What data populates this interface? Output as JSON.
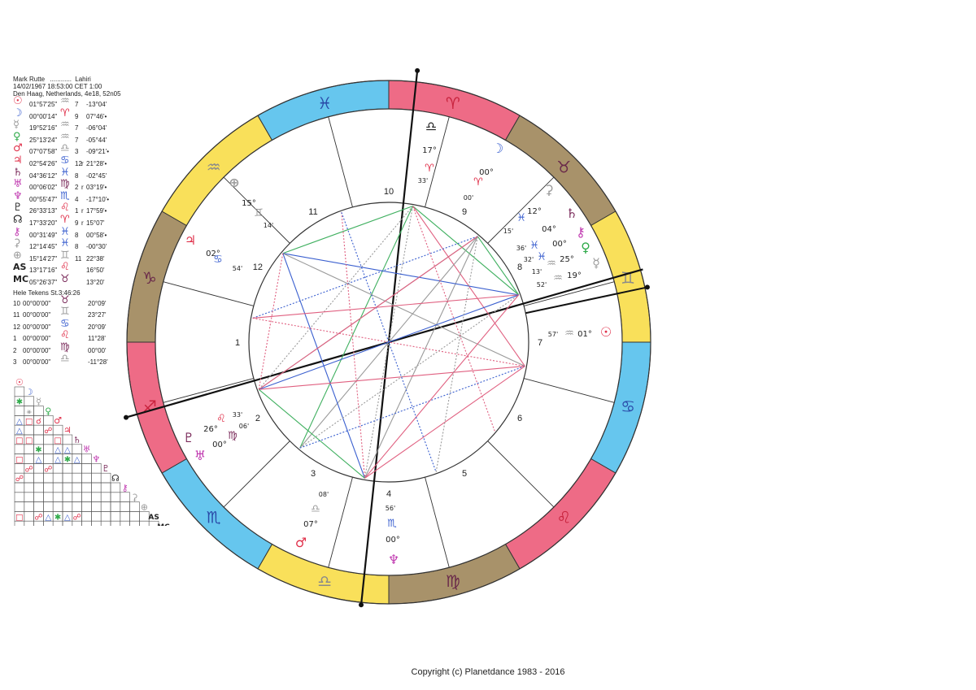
{
  "header": {
    "name": "Mark Rutte",
    "dots": "............",
    "ayanamsa": "Lahiri",
    "datetime": "14/02/1967 18:53:00 CET 1:00",
    "location": "Den Haag, Netherlands, 4e18, 52n05"
  },
  "planets": [
    {
      "glyph": "☉",
      "name": "sun",
      "deg": "01°57'25\"",
      "sign": "♒",
      "house": "7",
      "retro": "",
      "decl": "-13°04'",
      "color": "#e0304a",
      "sign_color": "#9a9a9a"
    },
    {
      "glyph": "☽",
      "name": "moon",
      "deg": "00°00'14\"",
      "sign": "♈",
      "house": "9",
      "retro": "",
      "decl": "07°46'•",
      "color": "#3a5fcf",
      "sign_color": "#e0304a"
    },
    {
      "glyph": "☿",
      "name": "mercury",
      "deg": "19°52'16\"",
      "sign": "♒",
      "house": "7",
      "retro": "",
      "decl": "-06°04'",
      "color": "#9a9a9a",
      "sign_color": "#9a9a9a"
    },
    {
      "glyph": "♀",
      "name": "venus",
      "deg": "25°13'24\"",
      "sign": "♒",
      "house": "7",
      "retro": "",
      "decl": "-05°44'",
      "color": "#2faa4a",
      "sign_color": "#9a9a9a"
    },
    {
      "glyph": "♂",
      "name": "mars",
      "deg": "07°07'58\"",
      "sign": "♎",
      "house": "3",
      "retro": "",
      "decl": "-09°21'•",
      "color": "#e0304a",
      "sign_color": "#9a9a9a"
    },
    {
      "glyph": "♃",
      "name": "jupiter",
      "deg": "02°54'26\"",
      "sign": "♋",
      "house": "12",
      "retro": "r",
      "decl": "21°28'•",
      "color": "#e0304a",
      "sign_color": "#3a5fcf"
    },
    {
      "glyph": "♄",
      "name": "saturn",
      "deg": "04°36'12\"",
      "sign": "♓",
      "house": "8",
      "retro": "",
      "decl": "-02°45'",
      "color": "#7a2a5a",
      "sign_color": "#3a5fcf"
    },
    {
      "glyph": "♅",
      "name": "uranus",
      "deg": "00°06'02\"",
      "sign": "♍",
      "house": "2",
      "retro": "r",
      "decl": "03°19'•",
      "color": "#c03ab0",
      "sign_color": "#7a2a5a"
    },
    {
      "glyph": "♆",
      "name": "neptune",
      "deg": "00°55'47\"",
      "sign": "♏",
      "house": "4",
      "retro": "",
      "decl": "-17°10'•",
      "color": "#c03ab0",
      "sign_color": "#3a5fcf"
    },
    {
      "glyph": "♇",
      "name": "pluto",
      "deg": "26°33'13\"",
      "sign": "♌",
      "house": "1",
      "retro": "r",
      "decl": "17°59'•",
      "color": "#222222",
      "sign_color": "#e0304a"
    },
    {
      "glyph": "☊",
      "name": "node",
      "deg": "17°33'20\"",
      "sign": "♈",
      "house": "9",
      "retro": "r",
      "decl": "15°07'",
      "color": "#222222",
      "sign_color": "#e0304a"
    },
    {
      "glyph": "⚷",
      "name": "chiron",
      "deg": "00°31'49\"",
      "sign": "♓",
      "house": "8",
      "retro": "",
      "decl": "00°58'•",
      "color": "#c03ab0",
      "sign_color": "#3a5fcf"
    },
    {
      "glyph": "⚳",
      "name": "ceres",
      "deg": "12°14'45\"",
      "sign": "♓",
      "house": "8",
      "retro": "",
      "decl": "-00°30'",
      "color": "#9a9a9a",
      "sign_color": "#3a5fcf"
    },
    {
      "glyph": "⊕",
      "name": "fortune",
      "deg": "15°14'27\"",
      "sign": "♊",
      "house": "11",
      "retro": "",
      "decl": "22°38'",
      "color": "#9a9a9a",
      "sign_color": "#9a9a9a"
    },
    {
      "glyph": "AS",
      "name": "ascendant",
      "deg": "13°17'16\"",
      "sign": "♌",
      "house": "",
      "retro": "",
      "decl": "16°50'",
      "color": "#222222",
      "sign_color": "#e0304a"
    },
    {
      "glyph": "MC",
      "name": "midheaven",
      "deg": "05°26'37\"",
      "sign": "♉",
      "house": "",
      "retro": "",
      "decl": "13°20'",
      "color": "#222222",
      "sign_color": "#7a2a5a"
    }
  ],
  "houses_title": "Hele Tekens St.3:46:26",
  "houses": [
    {
      "num": "10",
      "deg": "00°00'00\"",
      "sign": "♉",
      "sign_color": "#7a2a5a",
      "decl": "20°09'"
    },
    {
      "num": "11",
      "deg": "00°00'00\"",
      "sign": "♊",
      "sign_color": "#9a9a9a",
      "decl": "23°27'"
    },
    {
      "num": "12",
      "deg": "00°00'00\"",
      "sign": "♋",
      "sign_color": "#3a5fcf",
      "decl": "20°09'"
    },
    {
      "num": "1",
      "deg": "00°00'00\"",
      "sign": "♌",
      "sign_color": "#e0304a",
      "decl": "11°28'"
    },
    {
      "num": "2",
      "deg": "00°00'00\"",
      "sign": "♍",
      "sign_color": "#7a2a5a",
      "decl": "00°00'"
    },
    {
      "num": "3",
      "deg": "00°00'00\"",
      "sign": "♎",
      "sign_color": "#9a9a9a",
      "decl": "-11°28'"
    }
  ],
  "zodiac": [
    {
      "glyph": "♈",
      "color": "#ee6b86",
      "glyph_color": "#c8243e"
    },
    {
      "glyph": "♉",
      "color": "#a8926a",
      "glyph_color": "#6a2a4a"
    },
    {
      "glyph": "♊",
      "color": "#f9e05a",
      "glyph_color": "#8a8a8a"
    },
    {
      "glyph": "♋",
      "color": "#66c6ee",
      "glyph_color": "#2a4aa8"
    },
    {
      "glyph": "♌",
      "color": "#ee6b86",
      "glyph_color": "#c8243e"
    },
    {
      "glyph": "♍",
      "color": "#a8926a",
      "glyph_color": "#6a2a4a"
    },
    {
      "glyph": "♎",
      "color": "#f9e05a",
      "glyph_color": "#8a8a8a"
    },
    {
      "glyph": "♏",
      "color": "#66c6ee",
      "glyph_color": "#2a4aa8"
    },
    {
      "glyph": "♐",
      "color": "#ee6b86",
      "glyph_color": "#c8243e"
    },
    {
      "glyph": "♑",
      "color": "#a8926a",
      "glyph_color": "#6a2a4a"
    },
    {
      "glyph": "♒",
      "color": "#f9e05a",
      "glyph_color": "#8a8a8a"
    },
    {
      "glyph": "♓",
      "color": "#66c6ee",
      "glyph_color": "#2a4aa8"
    }
  ],
  "house_numbers": [
    "1",
    "2",
    "3",
    "4",
    "5",
    "6",
    "7",
    "8",
    "9",
    "10",
    "11",
    "12"
  ],
  "wheel_labels": [
    {
      "t": "♎",
      "c": "#222222"
    },
    {
      "t": "17°",
      "c": "#222222"
    },
    {
      "t": "♈",
      "c": "#e0304a"
    },
    {
      "t": "33'",
      "c": "#222222"
    },
    {
      "t": "☽",
      "c": "#3a5fcf"
    },
    {
      "t": "00°",
      "c": "#222222"
    },
    {
      "t": "♈",
      "c": "#e0304a"
    },
    {
      "t": "00'",
      "c": "#222222"
    },
    {
      "t": "⚳",
      "c": "#9a9a9a"
    },
    {
      "t": "12°",
      "c": "#222222"
    },
    {
      "t": "♓",
      "c": "#3a5fcf"
    },
    {
      "t": "15'",
      "c": "#222222"
    },
    {
      "t": "♄",
      "c": "#7a2a5a"
    },
    {
      "t": "04°",
      "c": "#222222"
    },
    {
      "t": "♓",
      "c": "#3a5fcf"
    },
    {
      "t": "36'",
      "c": "#222222"
    },
    {
      "t": "⚷",
      "c": "#c03ab0"
    },
    {
      "t": "00°",
      "c": "#222222"
    },
    {
      "t": "♓",
      "c": "#3a5fcf"
    },
    {
      "t": "32'",
      "c": "#222222"
    },
    {
      "t": "♀",
      "c": "#2faa4a"
    },
    {
      "t": "25°",
      "c": "#222222"
    },
    {
      "t": "♒",
      "c": "#9a9a9a"
    },
    {
      "t": "13'",
      "c": "#222222"
    },
    {
      "t": "☿",
      "c": "#9a9a9a"
    },
    {
      "t": "19°",
      "c": "#222222"
    },
    {
      "t": "♒",
      "c": "#9a9a9a"
    },
    {
      "t": "52'",
      "c": "#222222"
    },
    {
      "t": "☉",
      "c": "#e0304a"
    },
    {
      "t": "01°",
      "c": "#222222"
    },
    {
      "t": "♒",
      "c": "#9a9a9a"
    },
    {
      "t": "57'",
      "c": "#222222"
    },
    {
      "t": "⊕",
      "c": "#9a9a9a"
    },
    {
      "t": "15°",
      "c": "#222222"
    },
    {
      "t": "♊",
      "c": "#9a9a9a"
    },
    {
      "t": "14'",
      "c": "#222222"
    },
    {
      "t": "♃",
      "c": "#e0304a"
    },
    {
      "t": "02°",
      "c": "#222222"
    },
    {
      "t": "♋",
      "c": "#3a5fcf"
    },
    {
      "t": "54'",
      "c": "#222222"
    },
    {
      "t": "♇",
      "c": "#7a2a5a"
    },
    {
      "t": "26°",
      "c": "#222222"
    },
    {
      "t": "♌",
      "c": "#e0304a"
    },
    {
      "t": "33'",
      "c": "#222222"
    },
    {
      "t": "♅",
      "c": "#c03ab0"
    },
    {
      "t": "00°",
      "c": "#222222"
    },
    {
      "t": "♍",
      "c": "#7a2a5a"
    },
    {
      "t": "06'",
      "c": "#222222"
    },
    {
      "t": "♂",
      "c": "#e0304a"
    },
    {
      "t": "07°",
      "c": "#222222"
    },
    {
      "t": "♎",
      "c": "#9a9a9a"
    },
    {
      "t": "08'",
      "c": "#222222"
    },
    {
      "t": "♆",
      "c": "#c03ab0"
    },
    {
      "t": "00°",
      "c": "#222222"
    },
    {
      "t": "♏",
      "c": "#3a5fcf"
    },
    {
      "t": "56'",
      "c": "#222222"
    }
  ],
  "aspect_lines": [
    {
      "a": 10,
      "b": 8,
      "c": "#40b060",
      "s": 0
    },
    {
      "a": 10,
      "b": 3,
      "c": "#40b060",
      "s": 0
    },
    {
      "a": 10,
      "b": 7,
      "c": "#e06080",
      "s": 0
    },
    {
      "a": 10,
      "b": 2,
      "c": "#9a9a9a",
      "s": 1
    },
    {
      "a": 10,
      "b": 4,
      "c": "#9a9a9a",
      "s": 1
    },
    {
      "a": 10,
      "b": 12,
      "c": "#40b060",
      "s": 0
    },
    {
      "a": 9,
      "b": 4,
      "c": "#9a9a9a",
      "s": 0
    },
    {
      "a": 9,
      "b": 3,
      "c": "#9a9a9a",
      "s": 0
    },
    {
      "a": 9,
      "b": 2,
      "c": "#9a9a9a",
      "s": 0
    },
    {
      "a": 9,
      "b": 8,
      "c": "#40b060",
      "s": 0
    },
    {
      "a": 9,
      "b": 1,
      "c": "#3a5fcf",
      "s": 1
    },
    {
      "a": 12,
      "b": 8,
      "c": "#3a5fcf",
      "s": 0
    },
    {
      "a": 12,
      "b": 7,
      "c": "#9a9a9a",
      "s": 0
    },
    {
      "a": 12,
      "b": 4,
      "c": "#3a5fcf",
      "s": 0
    },
    {
      "a": 12,
      "b": 2,
      "c": "#e06080",
      "s": 1
    },
    {
      "a": 1,
      "b": 8,
      "c": "#e06080",
      "s": 0
    },
    {
      "a": 1,
      "b": 7,
      "c": "#e06080",
      "s": 1
    },
    {
      "a": 2,
      "b": 7,
      "c": "#e06080",
      "s": 0
    },
    {
      "a": 2,
      "b": 8,
      "c": "#3a5fcf",
      "s": 0
    },
    {
      "a": 2,
      "b": 4,
      "c": "#40b060",
      "s": 0
    },
    {
      "a": 3,
      "b": 8,
      "c": "#9a9a9a",
      "s": 1
    },
    {
      "a": 3,
      "b": 7,
      "c": "#3a5fcf",
      "s": 1
    },
    {
      "a": 4,
      "b": 8,
      "c": "#e06080",
      "s": 0
    },
    {
      "a": 4,
      "b": 7,
      "c": "#e06080",
      "s": 0
    },
    {
      "a": 11,
      "b": 4,
      "c": "#e06080",
      "s": 1
    },
    {
      "a": 11,
      "b": 5,
      "c": "#3a5fcf",
      "s": 1
    },
    {
      "a": 5,
      "b": 9,
      "c": "#9a9a9a",
      "s": 1
    },
    {
      "a": 6,
      "b": 10,
      "c": "#e06080",
      "s": 1
    },
    {
      "a": 2,
      "b": 9,
      "c": "#e06080",
      "s": 0
    }
  ],
  "aspect_grid_labels": [
    {
      "t": "☉",
      "c": "#e0304a"
    },
    {
      "t": "☽",
      "c": "#3a5fcf"
    },
    {
      "t": "☿",
      "c": "#9a9a9a"
    },
    {
      "t": "♀",
      "c": "#2faa4a"
    },
    {
      "t": "♂",
      "c": "#e0304a"
    },
    {
      "t": "♃",
      "c": "#e0304a"
    },
    {
      "t": "♄",
      "c": "#7a2a5a"
    },
    {
      "t": "♅",
      "c": "#c03ab0"
    },
    {
      "t": "♆",
      "c": "#c03ab0"
    },
    {
      "t": "♇",
      "c": "#7a2a5a"
    },
    {
      "t": "☊",
      "c": "#222222"
    },
    {
      "t": "⚷",
      "c": "#c03ab0"
    },
    {
      "t": "⚳",
      "c": "#9a9a9a"
    },
    {
      "t": "⊕",
      "c": "#9a9a9a"
    },
    {
      "t": "AS",
      "c": "#222222"
    },
    {
      "t": "MC",
      "c": "#222222"
    }
  ],
  "aspect_cells": [
    {
      "r": 1,
      "c": 0,
      "s": "✱",
      "k": "#2faa4a"
    },
    {
      "r": 3,
      "c": 0,
      "s": "△",
      "k": "#3a5fcf"
    },
    {
      "r": 3,
      "c": 1,
      "s": "□",
      "k": "#e0304a"
    },
    {
      "r": 3,
      "c": 2,
      "s": "☌",
      "k": "#e0304a"
    },
    {
      "r": 4,
      "c": 0,
      "s": "△",
      "k": "#3a5fcf"
    },
    {
      "r": 4,
      "c": 3,
      "s": "☍",
      "k": "#e0304a"
    },
    {
      "r": 5,
      "c": 0,
      "s": "□",
      "k": "#e0304a"
    },
    {
      "r": 5,
      "c": 1,
      "s": "□",
      "k": "#e0304a"
    },
    {
      "r": 5,
      "c": 4,
      "s": "□",
      "k": "#e0304a"
    },
    {
      "r": 6,
      "c": 2,
      "s": "✱",
      "k": "#2faa4a"
    },
    {
      "r": 6,
      "c": 4,
      "s": "△",
      "k": "#3a5fcf"
    },
    {
      "r": 6,
      "c": 5,
      "s": "△",
      "k": "#3a5fcf"
    },
    {
      "r": 7,
      "c": 0,
      "s": "□",
      "k": "#e0304a"
    },
    {
      "r": 7,
      "c": 2,
      "s": "△",
      "k": "#3a5fcf"
    },
    {
      "r": 7,
      "c": 4,
      "s": "△",
      "k": "#3a5fcf"
    },
    {
      "r": 7,
      "c": 5,
      "s": "✱",
      "k": "#2faa4a"
    },
    {
      "r": 7,
      "c": 6,
      "s": "△",
      "k": "#3a5fcf"
    },
    {
      "r": 8,
      "c": 1,
      "s": "☍",
      "k": "#e0304a"
    },
    {
      "r": 8,
      "c": 3,
      "s": "☍",
      "k": "#e0304a"
    },
    {
      "r": 9,
      "c": 0,
      "s": "☍",
      "k": "#e0304a"
    },
    {
      "r": 13,
      "c": 0,
      "s": "□",
      "k": "#e0304a"
    },
    {
      "r": 13,
      "c": 2,
      "s": "☍",
      "k": "#e0304a"
    },
    {
      "r": 13,
      "c": 3,
      "s": "△",
      "k": "#3a5fcf"
    },
    {
      "r": 13,
      "c": 4,
      "s": "✱",
      "k": "#2faa4a"
    },
    {
      "r": 13,
      "c": 5,
      "s": "△",
      "k": "#3a5fcf"
    },
    {
      "r": 13,
      "c": 6,
      "s": "☍",
      "k": "#e0304a"
    },
    {
      "r": 2,
      "c": 1,
      "s": "⚹",
      "k": "#9a9a9a"
    }
  ],
  "copyright": "Copyright (c) Planetdance 1983 - 2016"
}
